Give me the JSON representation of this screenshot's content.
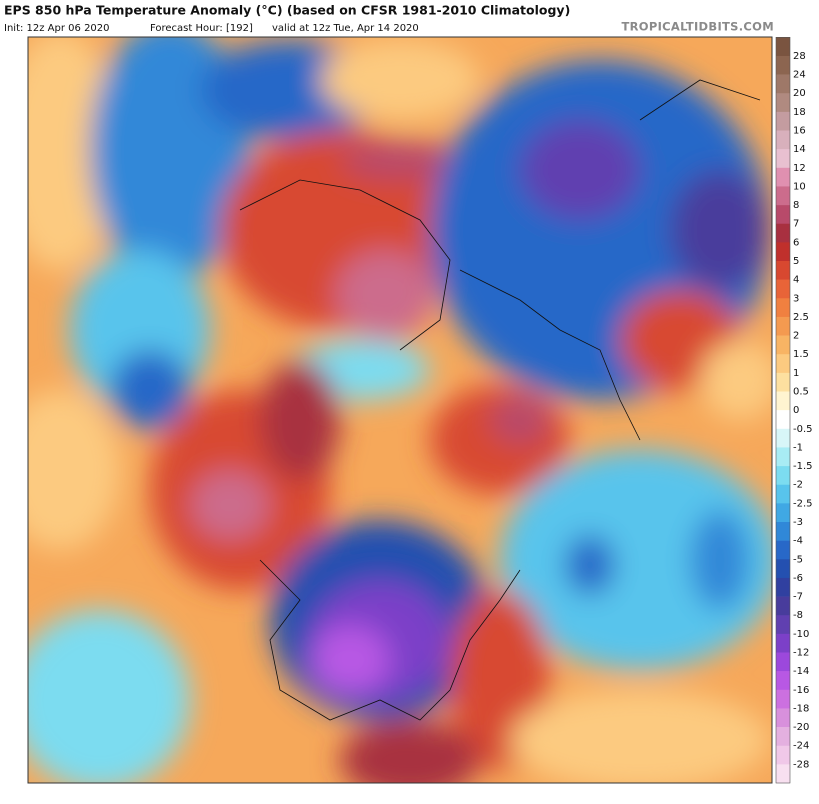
{
  "header": {
    "title": "EPS 850 hPa Temperature Anomaly (°C) (based on CFSR 1981-2010 Climatology)",
    "init": "Init: 12z Apr 06 2020",
    "forecast_hour": "Forecast Hour: [192]",
    "valid": "valid at 12z Tue, Apr 14 2020",
    "brand": "TROPICALTIDBITS.COM"
  },
  "colorbar": {
    "levels": [
      28,
      24,
      20,
      18,
      16,
      14,
      12,
      10,
      8,
      7,
      6,
      5,
      4,
      3,
      2.5,
      2,
      1.5,
      1,
      0.5,
      0,
      -0.5,
      -1,
      -1.5,
      -2,
      -2.5,
      -3,
      -4,
      -5,
      -6,
      -7,
      -8,
      -10,
      -12,
      -14,
      -16,
      -18,
      -20,
      -24,
      -28
    ],
    "colors": [
      "#7a5440",
      "#8c6550",
      "#9e7868",
      "#b08a80",
      "#c49ca0",
      "#d8b0bc",
      "#e8c0d0",
      "#e090b0",
      "#cc6c8c",
      "#b84a6a",
      "#a83040",
      "#c0302c",
      "#d84830",
      "#e86438",
      "#f08040",
      "#f49a50",
      "#f8b464",
      "#fcca80",
      "#fde0a0",
      "#fff4d0",
      "#ffffff",
      "#d8f6f8",
      "#a8ecf4",
      "#7cdcf0",
      "#58c4ec",
      "#40a8e4",
      "#3088d8",
      "#2868c8",
      "#2450b0",
      "#3040a0",
      "#483c9c",
      "#6040b0",
      "#7c40c8",
      "#9c48dc",
      "#b858e4",
      "#cc70e0",
      "#d890dc",
      "#e4b0e0",
      "#f0c8e8",
      "#f8e0f0"
    ]
  }
}
